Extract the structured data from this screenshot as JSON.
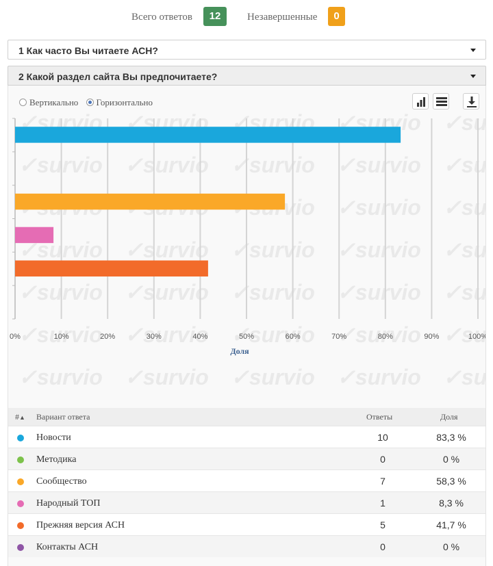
{
  "summary": {
    "total_label": "Всего ответов",
    "total_value": "12",
    "incomplete_label": "Незавершенные",
    "incomplete_value": "0",
    "colors": {
      "total": "#46915a",
      "incomplete": "#f0a01a"
    }
  },
  "questions": [
    {
      "label": "1 Как часто Вы читаете АСН?",
      "expanded": false
    },
    {
      "label": "2 Какой раздел сайта Вы предпочитаете?",
      "expanded": true
    }
  ],
  "orientation": {
    "options": [
      "Вертикально",
      "Горизонтально"
    ],
    "selected": "Горизонтально"
  },
  "toolbar": {
    "icons": [
      "bar-chart-icon",
      "table-icon",
      "download-icon"
    ]
  },
  "watermark": "survio",
  "chart_data": {
    "type": "bar",
    "orientation": "horizontal",
    "categories": [
      "Новости",
      "Методика",
      "Сообщество",
      "Народный ТОП",
      "Прежняя версия АСН",
      "Контакты АСН"
    ],
    "values": [
      83.3,
      0,
      58.3,
      8.3,
      41.7,
      0
    ],
    "colors": [
      "#1aa7dc",
      "#7dc24b",
      "#faa828",
      "#e56cb4",
      "#f26b2a",
      "#8f55a6"
    ],
    "xlabel": "Доля",
    "xlim": [
      0,
      100
    ],
    "ticks": [
      "0%",
      "10%",
      "20%",
      "30%",
      "40%",
      "50%",
      "60%",
      "70%",
      "80%",
      "90%",
      "100%"
    ],
    "grid": true
  },
  "table": {
    "headers": {
      "num": "#",
      "answer": "Вариант ответа",
      "count": "Ответы",
      "share": "Доля"
    },
    "rows": [
      {
        "label": "Новости",
        "count": "10",
        "share": "83,3 %",
        "color": "#1aa7dc"
      },
      {
        "label": "Методика",
        "count": "0",
        "share": "0 %",
        "color": "#7dc24b"
      },
      {
        "label": "Сообщество",
        "count": "7",
        "share": "58,3 %",
        "color": "#faa828"
      },
      {
        "label": "Народный ТОП",
        "count": "1",
        "share": "8,3 %",
        "color": "#e56cb4"
      },
      {
        "label": "Прежняя версия АСН",
        "count": "5",
        "share": "41,7 %",
        "color": "#f26b2a"
      },
      {
        "label": "Контакты АСН",
        "count": "0",
        "share": "0 %",
        "color": "#8f55a6"
      }
    ]
  }
}
